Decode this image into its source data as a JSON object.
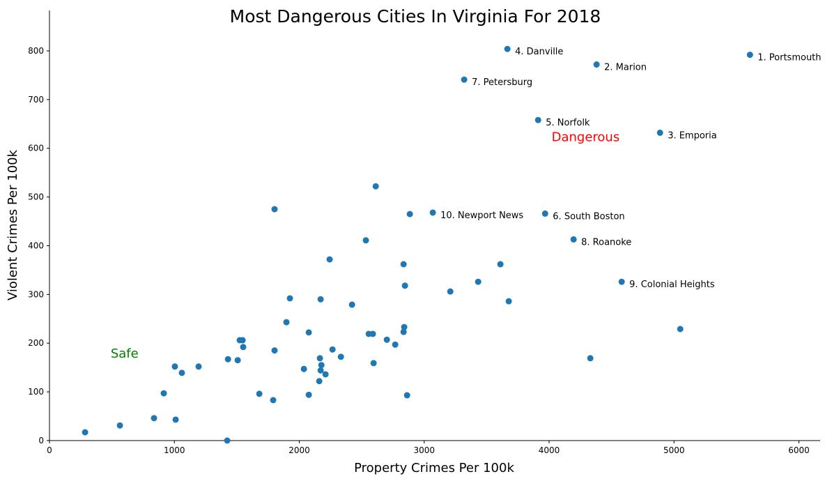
{
  "chart_data": {
    "type": "scatter",
    "title": "Most Dangerous Cities In Virginia For 2018",
    "xlabel": "Property Crimes Per 100k",
    "ylabel": "Violent Crimes Per 100k",
    "xlim": [
      0,
      6170
    ],
    "ylim": [
      0,
      883
    ],
    "xticks": [
      0,
      1000,
      2000,
      3000,
      4000,
      5000,
      6000
    ],
    "yticks": [
      0,
      100,
      200,
      300,
      400,
      500,
      600,
      700,
      800
    ],
    "grid": false,
    "point_color": "#1f77b4",
    "annotations": [
      {
        "text": "Dangerous",
        "x": 4020,
        "y": 615,
        "color": "#ff0000"
      },
      {
        "text": "Safe",
        "x": 490,
        "y": 170,
        "color": "#008000"
      }
    ],
    "labeled_points": [
      {
        "label": "1. Portsmouth",
        "x": 5608,
        "y": 792
      },
      {
        "label": "2. Marion",
        "x": 4380,
        "y": 772
      },
      {
        "label": "3. Emporia",
        "x": 4888,
        "y": 632
      },
      {
        "label": "4. Danville",
        "x": 3666,
        "y": 804
      },
      {
        "label": "5. Norfolk",
        "x": 3912,
        "y": 658
      },
      {
        "label": "6. South Boston",
        "x": 3968,
        "y": 466
      },
      {
        "label": "7. Petersburg",
        "x": 3320,
        "y": 741
      },
      {
        "label": "8. Roanoke",
        "x": 4196,
        "y": 413
      },
      {
        "label": "9. Colonial Heights",
        "x": 4581,
        "y": 326
      },
      {
        "label": "10. Newport News",
        "x": 3069,
        "y": 468
      }
    ],
    "points": [
      [
        2612,
        522
      ],
      [
        1802,
        475
      ],
      [
        2885,
        465
      ],
      [
        2533,
        411
      ],
      [
        2243,
        372
      ],
      [
        2835,
        362
      ],
      [
        3610,
        362
      ],
      [
        3432,
        326
      ],
      [
        2846,
        318
      ],
      [
        3209,
        306
      ],
      [
        1925,
        292
      ],
      [
        2171,
        290
      ],
      [
        2422,
        279
      ],
      [
        3677,
        286
      ],
      [
        1897,
        243
      ],
      [
        5050,
        229
      ],
      [
        2840,
        233
      ],
      [
        2076,
        222
      ],
      [
        2835,
        223
      ],
      [
        2556,
        219
      ],
      [
        2589,
        219
      ],
      [
        2701,
        207
      ],
      [
        2768,
        197
      ],
      [
        1523,
        206
      ],
      [
        1546,
        206
      ],
      [
        1551,
        192
      ],
      [
        1802,
        185
      ],
      [
        2266,
        187
      ],
      [
        2333,
        172
      ],
      [
        4330,
        169
      ],
      [
        2165,
        169
      ],
      [
        1429,
        167
      ],
      [
        1507,
        165
      ],
      [
        2595,
        159
      ],
      [
        2177,
        155
      ],
      [
        1004,
        152
      ],
      [
        1194,
        152
      ],
      [
        2171,
        144
      ],
      [
        2037,
        147
      ],
      [
        2210,
        136
      ],
      [
        1060,
        139
      ],
      [
        2160,
        122
      ],
      [
        915,
        97
      ],
      [
        1680,
        96
      ],
      [
        2076,
        94
      ],
      [
        2863,
        93
      ],
      [
        1791,
        83
      ],
      [
        837,
        46
      ],
      [
        1010,
        43
      ],
      [
        564,
        31
      ],
      [
        285,
        17
      ],
      [
        1423,
        0
      ]
    ]
  }
}
